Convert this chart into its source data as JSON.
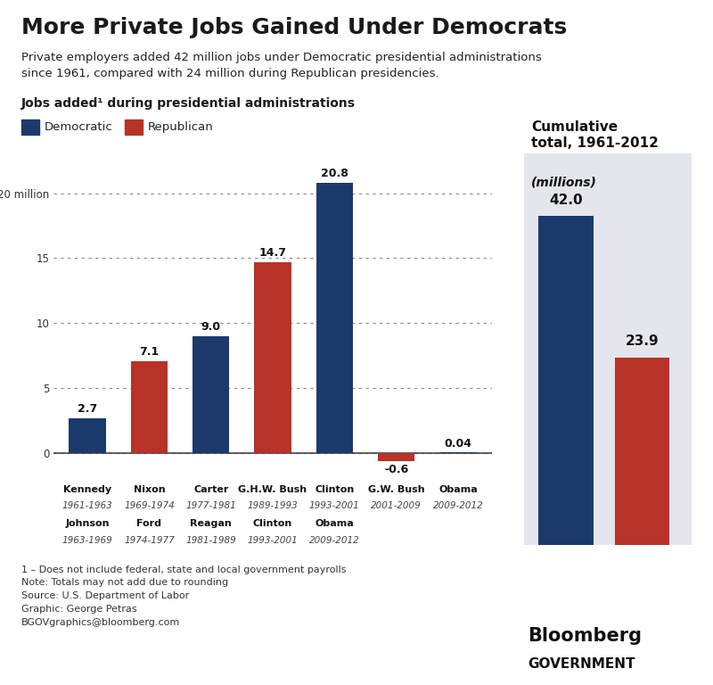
{
  "title": "More Private Jobs Gained Under Democrats",
  "subtitle": "Private employers added 42 million jobs under Democratic presidential administrations\nsince 1961, compared with 24 million during Republican presidencies.",
  "section_label": "Jobs added¹ during presidential administrations",
  "legend_dem": "Democratic",
  "legend_rep": "Republican",
  "dem_color": "#1B3A6B",
  "rep_color": "#B83228",
  "background_color": "#FFFFFF",
  "cumulative_bg": "#E4E6EE",
  "values": [
    2.7,
    7.1,
    9.0,
    14.7,
    20.8,
    -0.6,
    0.04
  ],
  "parties": [
    "dem",
    "rep",
    "dem",
    "rep",
    "dem",
    "rep",
    "dem"
  ],
  "value_labels": [
    "2.7",
    "7.1",
    "9.0",
    "14.7",
    "20.8",
    "-0.6",
    "0.04"
  ],
  "x_labels_top": [
    [
      "Kennedy",
      "1961-1963"
    ],
    [
      "Nixon",
      "1969-1974"
    ],
    [
      "Carter",
      "1977-1981"
    ],
    [
      "G.H.W. Bush",
      "1989-1993"
    ],
    [
      "Clinton",
      "1993-2001"
    ],
    [
      "G.W. Bush",
      "2001-2009"
    ],
    [
      "Obama",
      "2009-2012"
    ]
  ],
  "x_labels_bot": [
    [
      "Johnson",
      "1963-1969"
    ],
    [
      "Ford",
      "1974-1977"
    ],
    [
      "Reagan",
      "1981-1989"
    ],
    [
      "Clinton",
      "1993-2001"
    ],
    [
      "Obama",
      "2009-2012"
    ]
  ],
  "x_labels_bot_pos": [
    0,
    1,
    2,
    3,
    4
  ],
  "ylim": [
    -1.5,
    23
  ],
  "yticks": [
    0,
    5,
    10,
    15,
    20
  ],
  "ytick_labels": [
    "0",
    "5",
    "10",
    "15",
    "20 million"
  ],
  "cumulative_dem": 42.0,
  "cumulative_rep": 23.9,
  "cumulative_title_line1": "Cumulative",
  "cumulative_title_line2": "total, 1961-2012",
  "cumulative_title_line3": "(millions)",
  "footnote": "1 – Does not include federal, state and local government payrolls\nNote: Totals may not add due to rounding\nSource: U.S. Department of Labor\nGraphic: George Petras\nBGOVgraphics@bloomberg.com",
  "bloomberg1": "Bloomberg",
  "bloomberg2": "GOVERNMENT"
}
